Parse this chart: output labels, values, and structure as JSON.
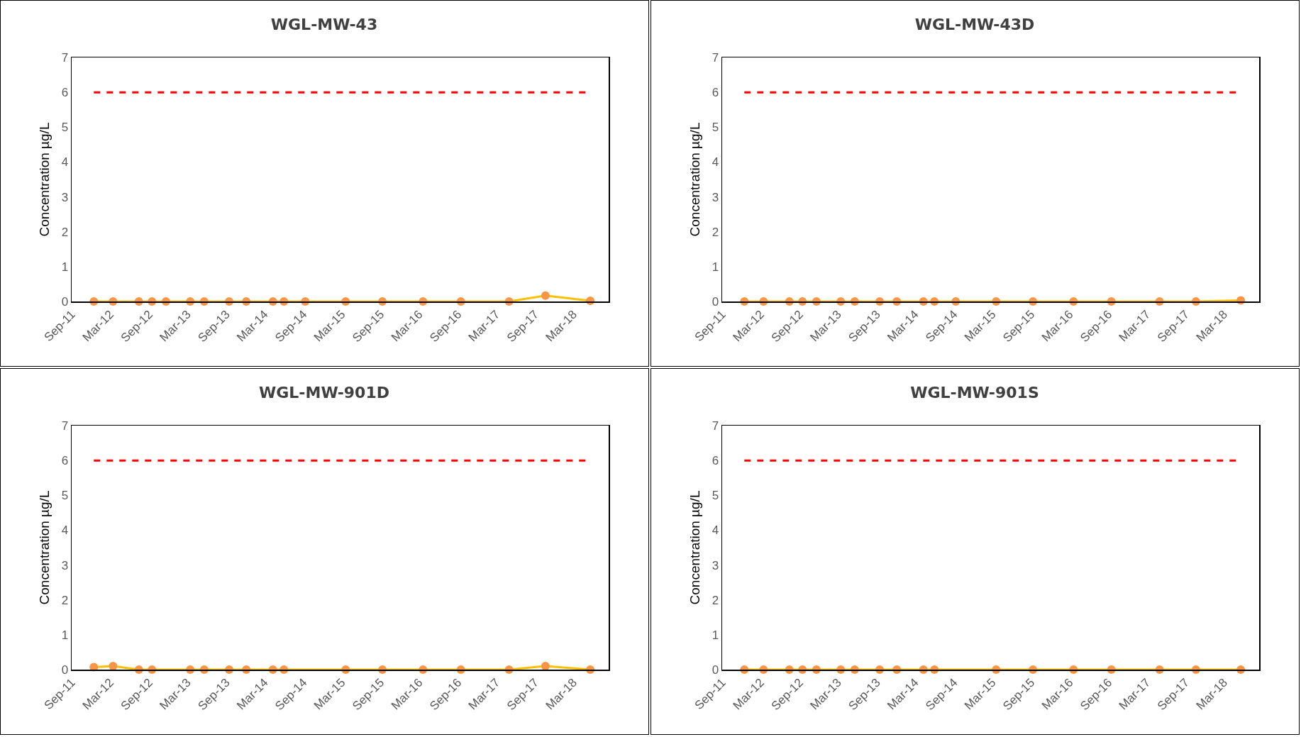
{
  "chart_data": [
    {
      "type": "line",
      "title": "WGL-MW-43",
      "ylabel": "Concentration µg/L",
      "x": [
        "2011-12-15",
        "2012-03-15",
        "2012-07-15",
        "2012-09-15",
        "2012-11-20",
        "2013-03-15",
        "2013-05-20",
        "2013-09-15",
        "2013-12-05",
        "2014-04-10",
        "2014-06-01",
        "2014-09-10",
        "2015-03-20",
        "2015-09-10",
        "2016-03-20",
        "2016-09-15",
        "2017-05-01",
        "2017-10-20",
        "2018-05-20"
      ],
      "series": [
        {
          "color": "#ffc000",
          "colors": [
            "#f79646",
            "#f79646",
            "#f79646",
            "#f79646",
            "#f79646",
            "#f79646",
            "#f79646",
            "#f79646",
            "#f79646",
            "#f79646",
            "#f79646",
            "#f79646",
            "#f79646",
            "#f79646",
            "#f79646",
            "#f79646",
            "#f79646",
            "#f79646",
            "#f79646"
          ],
          "values": [
            0,
            0,
            0,
            0,
            0,
            0,
            0,
            0,
            0,
            0,
            0,
            0,
            0,
            0,
            0,
            0,
            0,
            0.17,
            0.02
          ]
        }
      ],
      "xlim": [
        "2011-09-01",
        "2018-08-15"
      ],
      "xticks": [
        {
          "value": "2011-09-01",
          "label": "Sep-11"
        },
        {
          "value": "2012-03-01",
          "label": "Mar-12"
        },
        {
          "value": "2012-09-01",
          "label": "Sep-12"
        },
        {
          "value": "2013-03-01",
          "label": "Mar-13"
        },
        {
          "value": "2013-09-01",
          "label": "Sep-13"
        },
        {
          "value": "2014-03-01",
          "label": "Mar-14"
        },
        {
          "value": "2014-09-01",
          "label": "Sep-14"
        },
        {
          "value": "2015-03-01",
          "label": "Mar-15"
        },
        {
          "value": "2015-09-01",
          "label": "Sep-15"
        },
        {
          "value": "2016-03-01",
          "label": "Mar-16"
        },
        {
          "value": "2016-09-01",
          "label": "Sep-16"
        },
        {
          "value": "2017-03-01",
          "label": "Mar-17"
        },
        {
          "value": "2017-09-01",
          "label": "Sep-17"
        },
        {
          "value": "2018-03-01",
          "label": "Mar-18"
        }
      ],
      "ylim": [
        0,
        7
      ],
      "yticks": [
        0,
        1,
        2,
        3,
        4,
        5,
        6,
        7
      ],
      "grid": false,
      "marker": "circle",
      "line_style": "solid",
      "ref_lines": [
        {
          "axis": "y",
          "value": 6,
          "color": "#ff0000",
          "line_style": "dashed"
        }
      ]
    },
    {
      "type": "line",
      "title": "WGL-MW-43D",
      "ylabel": "Concentration µg/L",
      "x": [
        "2011-12-15",
        "2012-03-15",
        "2012-07-15",
        "2012-09-15",
        "2012-11-20",
        "2013-03-15",
        "2013-05-20",
        "2013-09-15",
        "2013-12-05",
        "2014-04-10",
        "2014-06-01",
        "2014-09-10",
        "2015-03-20",
        "2015-09-10",
        "2016-03-20",
        "2016-09-15",
        "2017-05-01",
        "2017-10-20",
        "2018-05-20"
      ],
      "series": [
        {
          "color": "#ffc000",
          "colors": [
            "#f79646",
            "#f79646",
            "#f79646",
            "#f79646",
            "#f79646",
            "#f79646",
            "#f79646",
            "#f79646",
            "#f79646",
            "#f79646",
            "#f79646",
            "#f79646",
            "#f79646",
            "#f79646",
            "#f79646",
            "#f79646",
            "#f79646",
            "#f79646",
            "#f79646"
          ],
          "values": [
            0,
            0,
            0,
            0,
            0,
            0,
            0,
            0,
            0,
            0,
            0,
            0,
            0,
            0,
            0,
            0,
            0,
            0,
            0.03
          ]
        }
      ],
      "xlim": [
        "2011-09-01",
        "2018-08-15"
      ],
      "xticks": [
        {
          "value": "2011-09-01",
          "label": "Sep-11"
        },
        {
          "value": "2012-03-01",
          "label": "Mar-12"
        },
        {
          "value": "2012-09-01",
          "label": "Sep-12"
        },
        {
          "value": "2013-03-01",
          "label": "Mar-13"
        },
        {
          "value": "2013-09-01",
          "label": "Sep-13"
        },
        {
          "value": "2014-03-01",
          "label": "Mar-14"
        },
        {
          "value": "2014-09-01",
          "label": "Sep-14"
        },
        {
          "value": "2015-03-01",
          "label": "Mar-15"
        },
        {
          "value": "2015-09-01",
          "label": "Sep-15"
        },
        {
          "value": "2016-03-01",
          "label": "Mar-16"
        },
        {
          "value": "2016-09-01",
          "label": "Sep-16"
        },
        {
          "value": "2017-03-01",
          "label": "Mar-17"
        },
        {
          "value": "2017-09-01",
          "label": "Sep-17"
        },
        {
          "value": "2018-03-01",
          "label": "Mar-18"
        }
      ],
      "ylim": [
        0,
        7
      ],
      "yticks": [
        0,
        1,
        2,
        3,
        4,
        5,
        6,
        7
      ],
      "grid": false,
      "marker": "circle",
      "line_style": "solid",
      "ref_lines": [
        {
          "axis": "y",
          "value": 6,
          "color": "#ff0000",
          "line_style": "dashed"
        }
      ]
    },
    {
      "type": "line",
      "title": "WGL-MW-901D",
      "ylabel": "Concentration µg/L",
      "x": [
        "2011-12-15",
        "2012-03-15",
        "2012-07-15",
        "2012-09-15",
        "2013-03-15",
        "2013-05-20",
        "2013-09-15",
        "2013-12-05",
        "2014-04-10",
        "2014-06-01",
        "2015-03-20",
        "2015-09-10",
        "2016-03-20",
        "2016-09-15",
        "2017-05-01",
        "2017-10-20",
        "2018-05-20"
      ],
      "series": [
        {
          "color": "#ffc000",
          "colors": [
            "#f79646",
            "#f79646",
            "#f79646",
            "#f79646",
            "#f79646",
            "#f79646",
            "#f79646",
            "#f79646",
            "#f79646",
            "#f79646",
            "#f79646",
            "#f79646",
            "#f79646",
            "#f79646",
            "#f79646",
            "#f79646",
            "#f79646"
          ],
          "values": [
            0.07,
            0.1,
            0,
            0,
            0,
            0,
            0,
            0,
            0,
            0,
            0,
            0,
            0,
            0,
            0,
            0.1,
            0
          ]
        }
      ],
      "xlim": [
        "2011-09-01",
        "2018-08-15"
      ],
      "xticks": [
        {
          "value": "2011-09-01",
          "label": "Sep-11"
        },
        {
          "value": "2012-03-01",
          "label": "Mar-12"
        },
        {
          "value": "2012-09-01",
          "label": "Sep-12"
        },
        {
          "value": "2013-03-01",
          "label": "Mar-13"
        },
        {
          "value": "2013-09-01",
          "label": "Sep-13"
        },
        {
          "value": "2014-03-01",
          "label": "Mar-14"
        },
        {
          "value": "2014-09-01",
          "label": "Sep-14"
        },
        {
          "value": "2015-03-01",
          "label": "Mar-15"
        },
        {
          "value": "2015-09-01",
          "label": "Sep-15"
        },
        {
          "value": "2016-03-01",
          "label": "Mar-16"
        },
        {
          "value": "2016-09-01",
          "label": "Sep-16"
        },
        {
          "value": "2017-03-01",
          "label": "Mar-17"
        },
        {
          "value": "2017-09-01",
          "label": "Sep-17"
        },
        {
          "value": "2018-03-01",
          "label": "Mar-18"
        }
      ],
      "ylim": [
        0,
        7
      ],
      "yticks": [
        0,
        1,
        2,
        3,
        4,
        5,
        6,
        7
      ],
      "grid": false,
      "marker": "circle",
      "line_style": "solid",
      "ref_lines": [
        {
          "axis": "y",
          "value": 6,
          "color": "#ff0000",
          "line_style": "dashed"
        }
      ]
    },
    {
      "type": "line",
      "title": "WGL-MW-901S",
      "ylabel": "Concentration µg/L",
      "x": [
        "2011-12-15",
        "2012-03-15",
        "2012-07-15",
        "2012-09-15",
        "2012-11-20",
        "2013-03-15",
        "2013-05-20",
        "2013-09-15",
        "2013-12-05",
        "2014-04-10",
        "2014-06-01",
        "2015-03-20",
        "2015-09-10",
        "2016-03-20",
        "2016-09-15",
        "2017-05-01",
        "2017-10-20",
        "2018-05-20"
      ],
      "series": [
        {
          "color": "#ffc000",
          "colors": [
            "#f79646",
            "#f79646",
            "#f79646",
            "#f79646",
            "#f79646",
            "#f79646",
            "#f79646",
            "#f79646",
            "#f79646",
            "#f79646",
            "#f79646",
            "#f79646",
            "#f79646",
            "#f79646",
            "#f79646",
            "#f79646",
            "#f79646",
            "#f79646"
          ],
          "values": [
            0,
            0,
            0,
            0,
            0,
            0,
            0,
            0,
            0,
            0,
            0,
            0,
            0,
            0,
            0,
            0,
            0,
            0
          ]
        }
      ],
      "xlim": [
        "2011-09-01",
        "2018-08-15"
      ],
      "xticks": [
        {
          "value": "2011-09-01",
          "label": "Sep-11"
        },
        {
          "value": "2012-03-01",
          "label": "Mar-12"
        },
        {
          "value": "2012-09-01",
          "label": "Sep-12"
        },
        {
          "value": "2013-03-01",
          "label": "Mar-13"
        },
        {
          "value": "2013-09-01",
          "label": "Sep-13"
        },
        {
          "value": "2014-03-01",
          "label": "Mar-14"
        },
        {
          "value": "2014-09-01",
          "label": "Sep-14"
        },
        {
          "value": "2015-03-01",
          "label": "Mar-15"
        },
        {
          "value": "2015-09-01",
          "label": "Sep-15"
        },
        {
          "value": "2016-03-01",
          "label": "Mar-16"
        },
        {
          "value": "2016-09-01",
          "label": "Sep-16"
        },
        {
          "value": "2017-03-01",
          "label": "Mar-17"
        },
        {
          "value": "2017-09-01",
          "label": "Sep-17"
        },
        {
          "value": "2018-03-01",
          "label": "Mar-18"
        }
      ],
      "ylim": [
        0,
        7
      ],
      "yticks": [
        0,
        1,
        2,
        3,
        4,
        5,
        6,
        7
      ],
      "grid": false,
      "marker": "circle",
      "line_style": "solid",
      "ref_lines": [
        {
          "axis": "y",
          "value": 6,
          "color": "#ff0000",
          "line_style": "dashed"
        }
      ]
    }
  ]
}
